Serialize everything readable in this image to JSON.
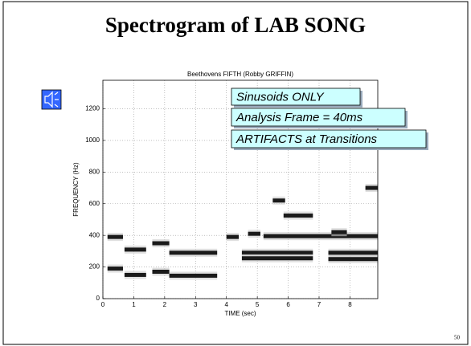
{
  "slide": {
    "title": "Spectrogram of LAB SONG",
    "page_number": "50"
  },
  "chart_data": {
    "type": "spectrogram",
    "title": "Beethovens FIFTH   (Robby GRIFFIN)",
    "x_label": "TIME (sec)",
    "y_label": "FREQUENCY (Hz)",
    "xlim": [
      0,
      8.9
    ],
    "ylim": [
      0,
      1380
    ],
    "xticks": [
      0,
      1,
      2,
      3,
      4,
      5,
      6,
      7,
      8
    ],
    "yticks": [
      0,
      200,
      400,
      600,
      800,
      1000,
      1200
    ],
    "grid": true,
    "color": "#1a1a1a",
    "segments": [
      {
        "x": [
          0.15,
          0.65
        ],
        "y": 390
      },
      {
        "x": [
          0.15,
          0.65
        ],
        "y": 190
      },
      {
        "x": [
          0.7,
          1.4
        ],
        "y": 310
      },
      {
        "x": [
          0.7,
          1.4
        ],
        "y": 150
      },
      {
        "x": [
          1.6,
          2.15
        ],
        "y": 350
      },
      {
        "x": [
          1.6,
          2.15
        ],
        "y": 170
      },
      {
        "x": [
          2.15,
          3.7
        ],
        "y": 290
      },
      {
        "x": [
          2.15,
          3.7
        ],
        "y": 145
      },
      {
        "x": [
          4.0,
          4.4
        ],
        "y": 390
      },
      {
        "x": [
          4.7,
          5.1
        ],
        "y": 410
      },
      {
        "x": [
          5.5,
          5.9
        ],
        "y": 620
      },
      {
        "x": [
          5.85,
          6.8
        ],
        "y": 525
      },
      {
        "x": [
          5.2,
          8.9
        ],
        "y": 395
      },
      {
        "x": [
          4.5,
          6.8
        ],
        "y": 290
      },
      {
        "x": [
          4.5,
          6.8
        ],
        "y": 255
      },
      {
        "x": [
          7.4,
          7.9
        ],
        "y": 420
      },
      {
        "x": [
          7.3,
          8.9
        ],
        "y": 290
      },
      {
        "x": [
          7.3,
          8.9
        ],
        "y": 250
      },
      {
        "x": [
          8.5,
          8.9
        ],
        "y": 700
      }
    ],
    "annotations": [
      "Sinusoids ONLY",
      "Analysis Frame = 40ms",
      "ARTIFACTS at Transitions"
    ]
  }
}
